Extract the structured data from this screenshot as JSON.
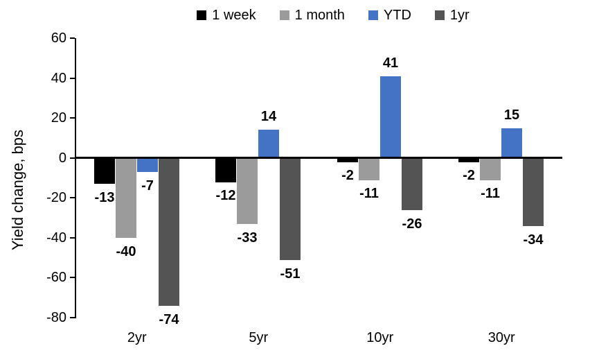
{
  "chart_data": {
    "type": "bar",
    "title": "",
    "xlabel": "",
    "ylabel": "Yield change, bps",
    "categories": [
      "2yr",
      "5yr",
      "10yr",
      "30yr"
    ],
    "series": [
      {
        "name": "1 week",
        "color": "#000000",
        "values": [
          -13,
          -12,
          -2,
          -2
        ]
      },
      {
        "name": "1 month",
        "color": "#9B9B9B",
        "values": [
          -40,
          -33,
          -11,
          -11
        ]
      },
      {
        "name": "YTD",
        "color": "#4472C4",
        "values": [
          -7,
          14,
          41,
          15
        ]
      },
      {
        "name": "1yr",
        "color": "#545454",
        "values": [
          -74,
          -51,
          -26,
          -34
        ]
      }
    ],
    "ylim": [
      -80,
      60
    ],
    "y_ticks": [
      60,
      40,
      20,
      0,
      -20,
      -40,
      -60,
      -80
    ],
    "grid": false,
    "legend_position": "top",
    "data_labels": "outside-end",
    "axis_color": "#000000",
    "background_color": "#FFFFFF"
  }
}
